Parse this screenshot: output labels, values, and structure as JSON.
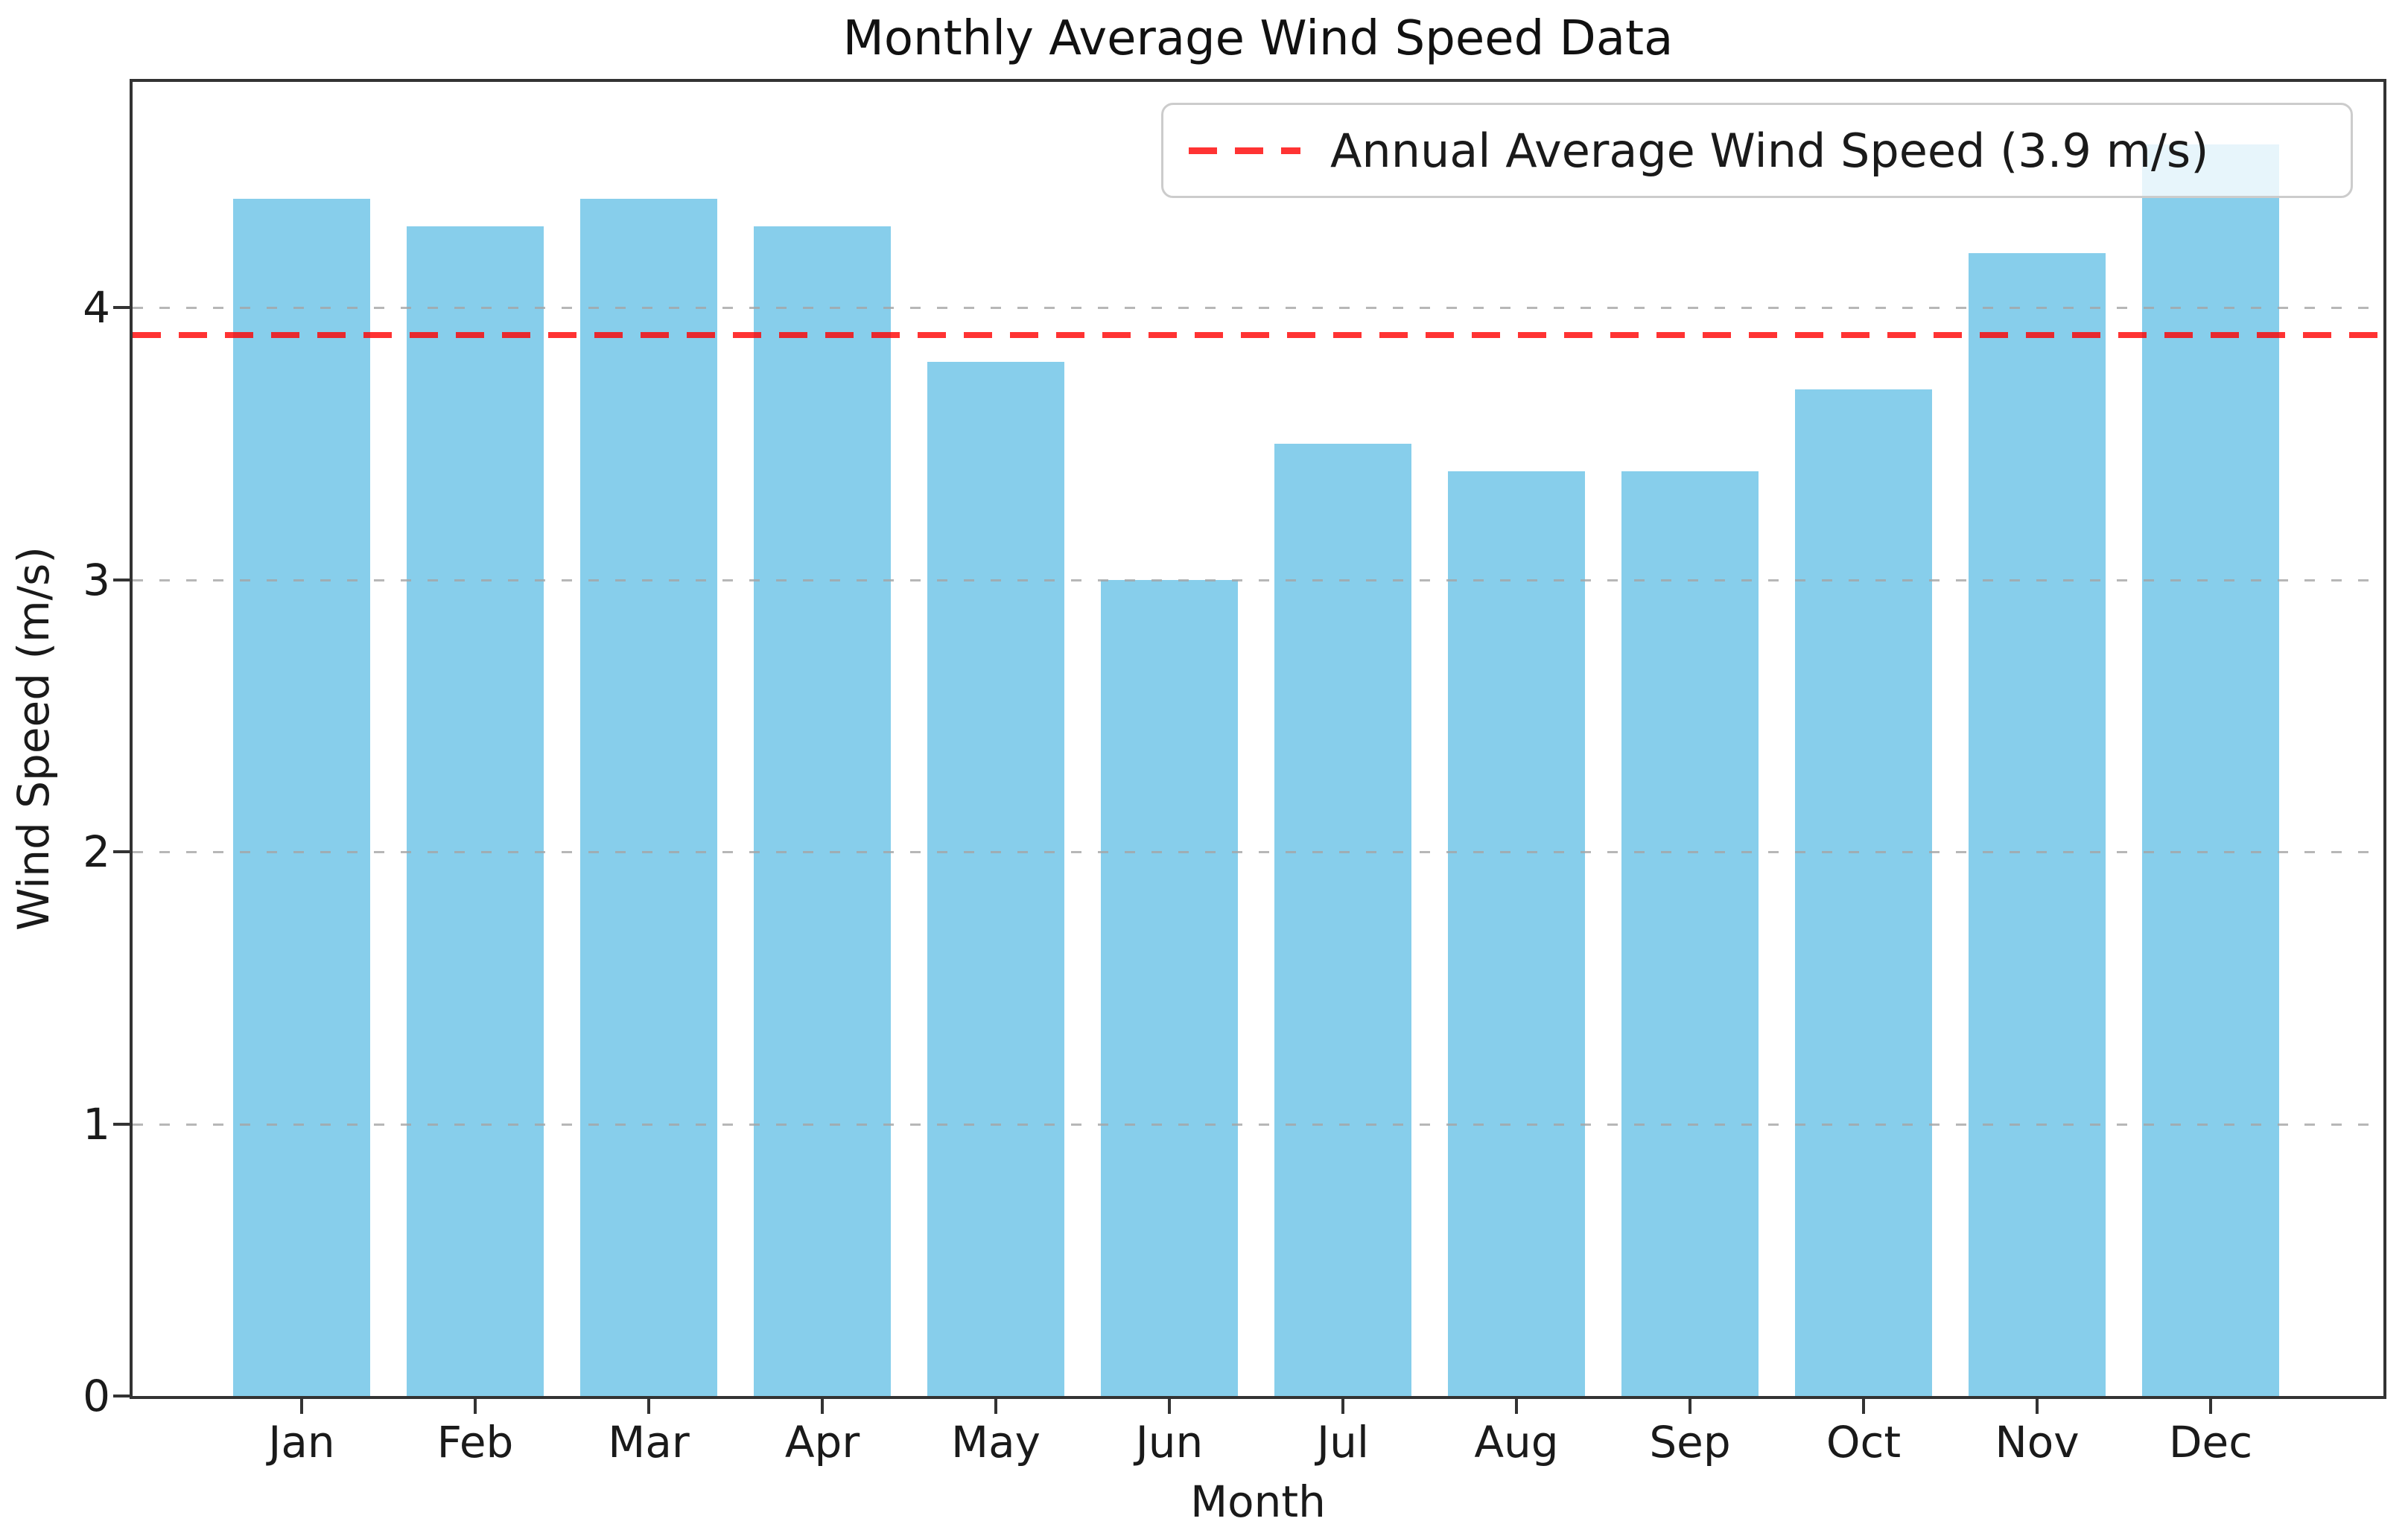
{
  "title": "Monthly Average Wind Speed Data",
  "axes": {
    "xlabel": "Month",
    "ylabel": "Wind Speed (m/s)"
  },
  "legend": {
    "label": "Annual Average Wind Speed (3.9 m/s)"
  },
  "chart_data": {
    "type": "bar",
    "title": "Monthly Average Wind Speed Data",
    "categories": [
      "Jan",
      "Feb",
      "Mar",
      "Apr",
      "May",
      "Jun",
      "Jul",
      "Aug",
      "Sep",
      "Oct",
      "Nov",
      "Dec"
    ],
    "values": [
      4.4,
      4.3,
      4.4,
      4.3,
      3.8,
      3.0,
      3.5,
      3.4,
      3.4,
      3.7,
      4.2,
      4.6
    ],
    "annual_average": 3.9,
    "annual_average_label": "Annual Average Wind Speed (3.9 m/s)",
    "xlabel": "Month",
    "ylabel": "Wind Speed (m/s)",
    "yticks": [
      0,
      1,
      2,
      3,
      4
    ],
    "ylim": [
      0,
      4.83
    ],
    "grid": true,
    "legend_position": "upper right",
    "bar_color": "#87ceeb",
    "avg_line_color": "#ff0000",
    "avg_line_alpha": 0.8,
    "avg_line_style": "dashed"
  }
}
